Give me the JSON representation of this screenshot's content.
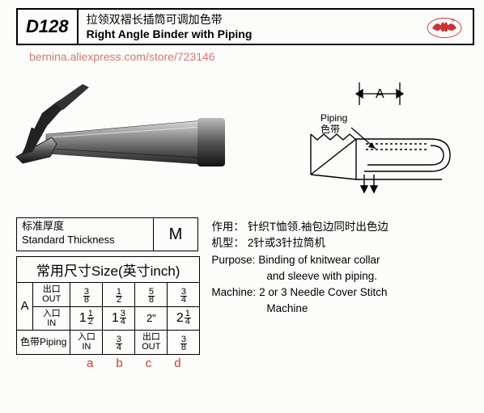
{
  "header": {
    "code": "D128",
    "title_cn": "拉领双褶长插筒可调加色带",
    "title_en": "Right Angle Binder with Piping"
  },
  "watermark": "bernina.aliexpress.com/store/723146",
  "diagram": {
    "piping_en": "Piping",
    "piping_cn": "色带",
    "letter": "A"
  },
  "thickness": {
    "label_cn": "标准厚度",
    "label_en": "Standard Thickness",
    "value": "M"
  },
  "size": {
    "title": "常用尺寸Size(英寸inch)",
    "rowA": "A",
    "out_cn": "出口",
    "out_en": "OUT",
    "in_cn": "入口",
    "in_en": "IN",
    "piping_cn": "色带",
    "piping_en": "Piping",
    "out_vals": [
      [
        null,
        "3",
        "8"
      ],
      [
        null,
        "1",
        "2"
      ],
      [
        null,
        "5",
        "8"
      ],
      [
        null,
        "3",
        "4"
      ]
    ],
    "in_vals": [
      [
        "1",
        "1",
        "2"
      ],
      [
        "1",
        "3",
        "4"
      ],
      "2\"",
      [
        "2",
        "1",
        "4"
      ]
    ],
    "pip_in": [
      null,
      "3",
      "4"
    ],
    "pip_out": [
      null,
      "3",
      "8"
    ],
    "letters": [
      "a",
      "b",
      "c",
      "d"
    ]
  },
  "desc": {
    "l1_label": "作用：",
    "l1_val": "针织T恤领.袖包边同时出色边",
    "l2_label": "机型：",
    "l2_val": "2针或3针拉筒机",
    "l3_label": "Purpose:",
    "l3_val": "Binding of knitwear collar",
    "l3_cont": "and sleeve with piping.",
    "l4_label": "Machine:",
    "l4_val": "2 or 3 Needle Cover Stitch",
    "l4_cont": "Machine"
  },
  "colors": {
    "red": "#cc3a2f",
    "wm": "#d27a6e"
  }
}
